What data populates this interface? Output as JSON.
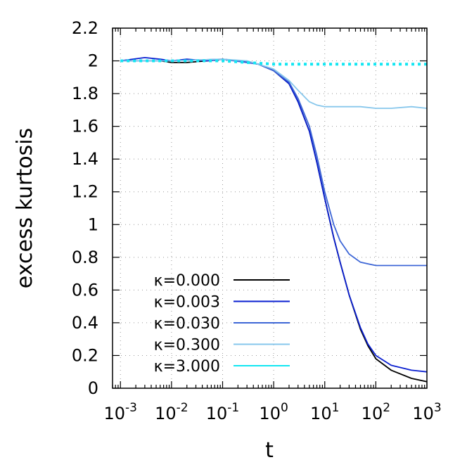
{
  "chart_data": {
    "type": "line",
    "xlabel": "t",
    "ylabel": "excess kurtosis",
    "xscale": "log",
    "xlim": [
      0.0007,
      1000
    ],
    "ylim": [
      0,
      2.2
    ],
    "grid": true,
    "legend_position": "bottom-left",
    "x_ticks": [
      {
        "value": 0.001,
        "base": "10",
        "exp": "-3"
      },
      {
        "value": 0.01,
        "base": "10",
        "exp": "-2"
      },
      {
        "value": 0.1,
        "base": "10",
        "exp": "-1"
      },
      {
        "value": 1,
        "base": "10",
        "exp": "0"
      },
      {
        "value": 10,
        "base": "10",
        "exp": "1"
      },
      {
        "value": 100,
        "base": "10",
        "exp": "2"
      },
      {
        "value": 1000,
        "base": "10",
        "exp": "3"
      }
    ],
    "y_ticks": [
      {
        "value": 0,
        "label": "0"
      },
      {
        "value": 0.2,
        "label": "0.2"
      },
      {
        "value": 0.4,
        "label": "0.4"
      },
      {
        "value": 0.6,
        "label": "0.6"
      },
      {
        "value": 0.8,
        "label": "0.8"
      },
      {
        "value": 1,
        "label": "1"
      },
      {
        "value": 1.2,
        "label": "1.2"
      },
      {
        "value": 1.4,
        "label": "1.4"
      },
      {
        "value": 1.6,
        "label": "1.6"
      },
      {
        "value": 1.8,
        "label": "1.8"
      },
      {
        "value": 2,
        "label": "2"
      },
      {
        "value": 2.2,
        "label": "2.2"
      }
    ],
    "series": [
      {
        "name": "κ=0.000",
        "color": "#000000",
        "style": "solid",
        "x": [
          0.001,
          0.003,
          0.006,
          0.01,
          0.02,
          0.05,
          0.1,
          0.2,
          0.5,
          1,
          2,
          3,
          5,
          7,
          10,
          15,
          20,
          30,
          50,
          70,
          100,
          200,
          500,
          1000
        ],
        "y": [
          2.0,
          2.0,
          2.0,
          1.99,
          1.99,
          2.0,
          2.01,
          2.0,
          1.98,
          1.94,
          1.86,
          1.75,
          1.57,
          1.38,
          1.16,
          0.92,
          0.77,
          0.57,
          0.36,
          0.26,
          0.18,
          0.11,
          0.06,
          0.04
        ]
      },
      {
        "name": "κ=0.003",
        "color": "#0a1fd0",
        "style": "solid",
        "x": [
          0.001,
          0.003,
          0.006,
          0.01,
          0.02,
          0.05,
          0.1,
          0.2,
          0.5,
          1,
          2,
          3,
          5,
          7,
          10,
          15,
          20,
          30,
          50,
          70,
          100,
          200,
          500,
          1000
        ],
        "y": [
          2.0,
          2.02,
          2.01,
          2.0,
          2.01,
          2.0,
          2.01,
          2.0,
          1.98,
          1.94,
          1.86,
          1.75,
          1.57,
          1.38,
          1.16,
          0.92,
          0.77,
          0.57,
          0.37,
          0.27,
          0.2,
          0.14,
          0.11,
          0.1
        ]
      },
      {
        "name": "κ=0.030",
        "color": "#3d66d6",
        "style": "solid",
        "x": [
          0.001,
          0.01,
          0.1,
          0.5,
          1,
          2,
          3,
          5,
          7,
          10,
          15,
          20,
          30,
          50,
          70,
          100,
          200,
          500,
          1000
        ],
        "y": [
          2.0,
          2.0,
          2.01,
          1.98,
          1.94,
          1.87,
          1.77,
          1.6,
          1.42,
          1.2,
          1.0,
          0.9,
          0.82,
          0.77,
          0.76,
          0.75,
          0.75,
          0.75,
          0.75
        ]
      },
      {
        "name": "κ=0.300",
        "color": "#87c7ec",
        "style": "solid",
        "x": [
          0.001,
          0.01,
          0.1,
          0.3,
          0.5,
          1,
          2,
          3,
          5,
          7,
          10,
          20,
          50,
          100,
          200,
          500,
          1000
        ],
        "y": [
          2.0,
          2.0,
          2.01,
          2.0,
          1.98,
          1.95,
          1.88,
          1.82,
          1.75,
          1.73,
          1.72,
          1.72,
          1.72,
          1.71,
          1.71,
          1.72,
          1.71
        ]
      },
      {
        "name": "κ=3.000",
        "color": "#13e6f2",
        "style": "dotted",
        "x": [
          0.001,
          0.01,
          0.1,
          0.3,
          1,
          3,
          10,
          100,
          1000
        ],
        "y": [
          2.0,
          2.0,
          2.0,
          1.99,
          1.98,
          1.98,
          1.98,
          1.98,
          1.98
        ]
      }
    ]
  }
}
